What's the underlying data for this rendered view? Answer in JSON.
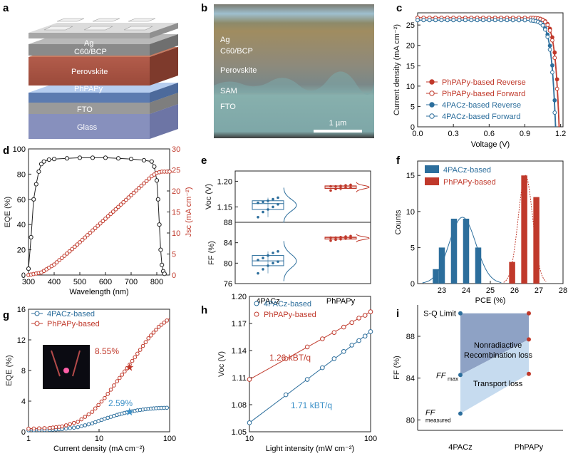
{
  "panels": {
    "a": {
      "letter": "a",
      "layers": [
        "Ag",
        "C60/BCP",
        "Perovskite",
        "PhPAPy",
        "FTO",
        "Glass"
      ]
    },
    "b": {
      "letter": "b",
      "layers": [
        "Ag",
        "C60/BCP",
        "Perovskite",
        "SAM",
        "FTO"
      ],
      "scale_bar": "1 µm"
    }
  },
  "colors": {
    "red": "#c0392b",
    "blue": "#2c6e9c",
    "redLight": "#d98a82",
    "blueLight": "#88b6d4",
    "sqFill1": "#8ea2c5",
    "sqFill2": "#c6dbef"
  },
  "chart_data": [
    {
      "id": "c",
      "type": "line",
      "letter": "c",
      "xlabel": "Voltage (V)",
      "ylabel": "Current density (mA cm⁻²)",
      "xlim": [
        0,
        1.22
      ],
      "ylim": [
        0,
        28
      ],
      "xticks": [
        0.0,
        0.3,
        0.6,
        0.9,
        1.2
      ],
      "xtick_labels": [
        "0.0",
        "0.3",
        "0.6",
        "0.9",
        "1.2"
      ],
      "yticks": [
        0,
        5,
        10,
        15,
        20,
        25
      ],
      "legend": [
        "PhPAPy-based Reverse",
        "PhPAPy-based Forward",
        "4PACz-based Reverse",
        "4PACz-based Forward"
      ],
      "series": [
        {
          "name": "PhPAPy-based Reverse",
          "jsc": 26.8,
          "voc": 1.19,
          "filled": true,
          "color": "red"
        },
        {
          "name": "PhPAPy-based Forward",
          "jsc": 26.8,
          "voc": 1.185,
          "filled": false,
          "color": "red"
        },
        {
          "name": "4PACz-based Reverse",
          "jsc": 26.2,
          "voc": 1.16,
          "filled": true,
          "color": "blue"
        },
        {
          "name": "4PACz-based Forward",
          "jsc": 26.2,
          "voc": 1.155,
          "filled": false,
          "color": "blue"
        }
      ]
    },
    {
      "id": "d",
      "type": "line",
      "letter": "d",
      "xlabel": "Wavelength (nm)",
      "ylabel": "EQE (%)",
      "y2label": "Jsc (mA cm⁻²)",
      "xlim": [
        300,
        850
      ],
      "ylim": [
        0,
        100
      ],
      "y2lim": [
        0,
        30
      ],
      "xticks": [
        300,
        400,
        500,
        600,
        700,
        800
      ],
      "yticks": [
        0,
        20,
        40,
        60,
        80,
        100
      ],
      "y2ticks": [
        0,
        5,
        10,
        15,
        20,
        25,
        30
      ],
      "eqe": [
        [
          300,
          5
        ],
        [
          310,
          30
        ],
        [
          320,
          60
        ],
        [
          330,
          72
        ],
        [
          340,
          82
        ],
        [
          350,
          88
        ],
        [
          360,
          90
        ],
        [
          380,
          91.5
        ],
        [
          400,
          92
        ],
        [
          450,
          92.5
        ],
        [
          500,
          93
        ],
        [
          550,
          93
        ],
        [
          600,
          93
        ],
        [
          650,
          92.5
        ],
        [
          700,
          92
        ],
        [
          750,
          91
        ],
        [
          780,
          90
        ],
        [
          790,
          86
        ],
        [
          800,
          75
        ],
        [
          805,
          60
        ],
        [
          810,
          40
        ],
        [
          815,
          20
        ],
        [
          820,
          8
        ],
        [
          825,
          3
        ],
        [
          830,
          1
        ]
      ],
      "jsc": [
        [
          300,
          0
        ],
        [
          350,
          0.6
        ],
        [
          400,
          2.5
        ],
        [
          450,
          5.1
        ],
        [
          500,
          7.8
        ],
        [
          550,
          10.6
        ],
        [
          600,
          13.4
        ],
        [
          650,
          16.2
        ],
        [
          700,
          19.0
        ],
        [
          750,
          21.8
        ],
        [
          780,
          23.5
        ],
        [
          800,
          24.3
        ],
        [
          820,
          24.6
        ],
        [
          850,
          24.6
        ]
      ]
    },
    {
      "id": "e",
      "type": "scatter",
      "letter": "e",
      "categories": [
        "4PACz",
        "PhPAPy"
      ],
      "top": {
        "ylabel": "Voc (V)",
        "ylim": [
          1.12,
          1.22
        ],
        "yticks": [
          1.15,
          1.2
        ],
        "4PACz": [
          1.13,
          1.14,
          1.145,
          1.15,
          1.155,
          1.158,
          1.16,
          1.162,
          1.165,
          1.168
        ],
        "PhPAPy": [
          1.182,
          1.185,
          1.186,
          1.188,
          1.188,
          1.19,
          1.19,
          1.191,
          1.192,
          1.193
        ]
      },
      "bottom": {
        "ylabel": "FF (%)",
        "ylim": [
          76,
          88
        ],
        "yticks": [
          76,
          80,
          84,
          88
        ],
        "4PACz": [
          78,
          78.8,
          79.5,
          80,
          80.3,
          80.6,
          81,
          81.5,
          82,
          82.3
        ],
        "PhPAPy": [
          84.4,
          84.6,
          84.7,
          84.8,
          84.9,
          85,
          85,
          85.1,
          85.2,
          85.3
        ]
      }
    },
    {
      "id": "f",
      "type": "bar",
      "letter": "f",
      "xlabel": "PCE (%)",
      "ylabel": "Counts",
      "xlim": [
        22,
        28
      ],
      "ylim": [
        0,
        17
      ],
      "xticks": [
        23,
        24,
        25,
        26,
        27,
        28
      ],
      "yticks": [
        0,
        5,
        10,
        15
      ],
      "legend": [
        "4PACz-based",
        "PhPAPy-based"
      ],
      "series": [
        {
          "name": "4PACz-based",
          "x": [
            22.75,
            23.0,
            23.5,
            24.0,
            24.5
          ],
          "values": [
            2,
            5,
            9,
            9,
            5
          ]
        },
        {
          "name": "PhPAPy-based",
          "x": [
            25.9,
            26.4,
            26.9
          ],
          "values": [
            3,
            15,
            12
          ]
        }
      ]
    },
    {
      "id": "g",
      "type": "line",
      "letter": "g",
      "xlabel": "Current density (mA cm⁻²)",
      "ylabel": "EQE (%)",
      "xscale": "log",
      "xlim": [
        1,
        100
      ],
      "ylim": [
        0,
        16
      ],
      "xticks": [
        1,
        10,
        100
      ],
      "yticks": [
        0,
        4,
        8,
        12,
        16
      ],
      "ytick_labels": [
        "0",
        "4",
        "8",
        "12",
        "16"
      ],
      "legend": [
        "4PACz-based",
        "PhPAPy-based"
      ],
      "annotations": [
        "8.55%",
        "2.59%"
      ],
      "series": [
        {
          "name": "4PACz-based",
          "x": [
            1,
            2,
            3,
            5,
            8,
            12,
            18,
            25,
            35,
            50,
            70,
            100
          ],
          "values": [
            0.2,
            0.25,
            0.35,
            0.6,
            1.1,
            1.7,
            2.2,
            2.55,
            2.8,
            3.0,
            3.1,
            3.15
          ]
        },
        {
          "name": "PhPAPy-based",
          "x": [
            1,
            2,
            3,
            5,
            8,
            12,
            18,
            25,
            35,
            50,
            70,
            100
          ],
          "values": [
            0.4,
            0.5,
            0.7,
            1.3,
            2.6,
            4.4,
            6.6,
            8.3,
            10.2,
            12.2,
            13.7,
            14.8
          ]
        }
      ]
    },
    {
      "id": "h",
      "type": "scatter",
      "letter": "h",
      "xlabel": "Light intensity (mW cm⁻²)",
      "ylabel": "Voc (V)",
      "xscale": "log",
      "xlim": [
        10,
        100
      ],
      "ylim": [
        1.05,
        1.2
      ],
      "xticks": [
        10,
        100
      ],
      "yticks": [
        1.05,
        1.08,
        1.11,
        1.14,
        1.17,
        1.2
      ],
      "legend": [
        "4PACz-based",
        "PhPAPy-based"
      ],
      "annotations": [
        "1.26 kBT/q",
        "1.71 kBT/q"
      ],
      "series": [
        {
          "name": "4PACz-based",
          "x": [
            10,
            20,
            30,
            40,
            50,
            60,
            70,
            80,
            90,
            100
          ],
          "values": [
            1.06,
            1.091,
            1.108,
            1.121,
            1.131,
            1.139,
            1.146,
            1.151,
            1.156,
            1.161
          ]
        },
        {
          "name": "PhPAPy-based",
          "x": [
            10,
            20,
            30,
            40,
            50,
            60,
            70,
            80,
            90,
            100
          ],
          "values": [
            1.108,
            1.131,
            1.144,
            1.153,
            1.16,
            1.166,
            1.171,
            1.176,
            1.179,
            1.183
          ]
        }
      ]
    },
    {
      "id": "i",
      "type": "line",
      "letter": "i",
      "ylabel": "FF (%)",
      "categories": [
        "4PACz",
        "PhPAPy"
      ],
      "ylim": [
        79,
        91
      ],
      "yticks": [
        80,
        84,
        88
      ],
      "points": {
        "sq": [
          90.2,
          90.2
        ],
        "ffmax": [
          84.3,
          87.7
        ],
        "ffmeasured": [
          80.6,
          84.4
        ]
      },
      "labels": {
        "sq": "S-Q Limit",
        "nonrad1": "Nonradiactive",
        "nonrad2": "Recombination loss",
        "transport": "Transport loss",
        "ffmax": "FF",
        "ffmax_sub": "max",
        "ffmeasured": "FF",
        "ffmeasured_sub": "measured"
      }
    }
  ]
}
